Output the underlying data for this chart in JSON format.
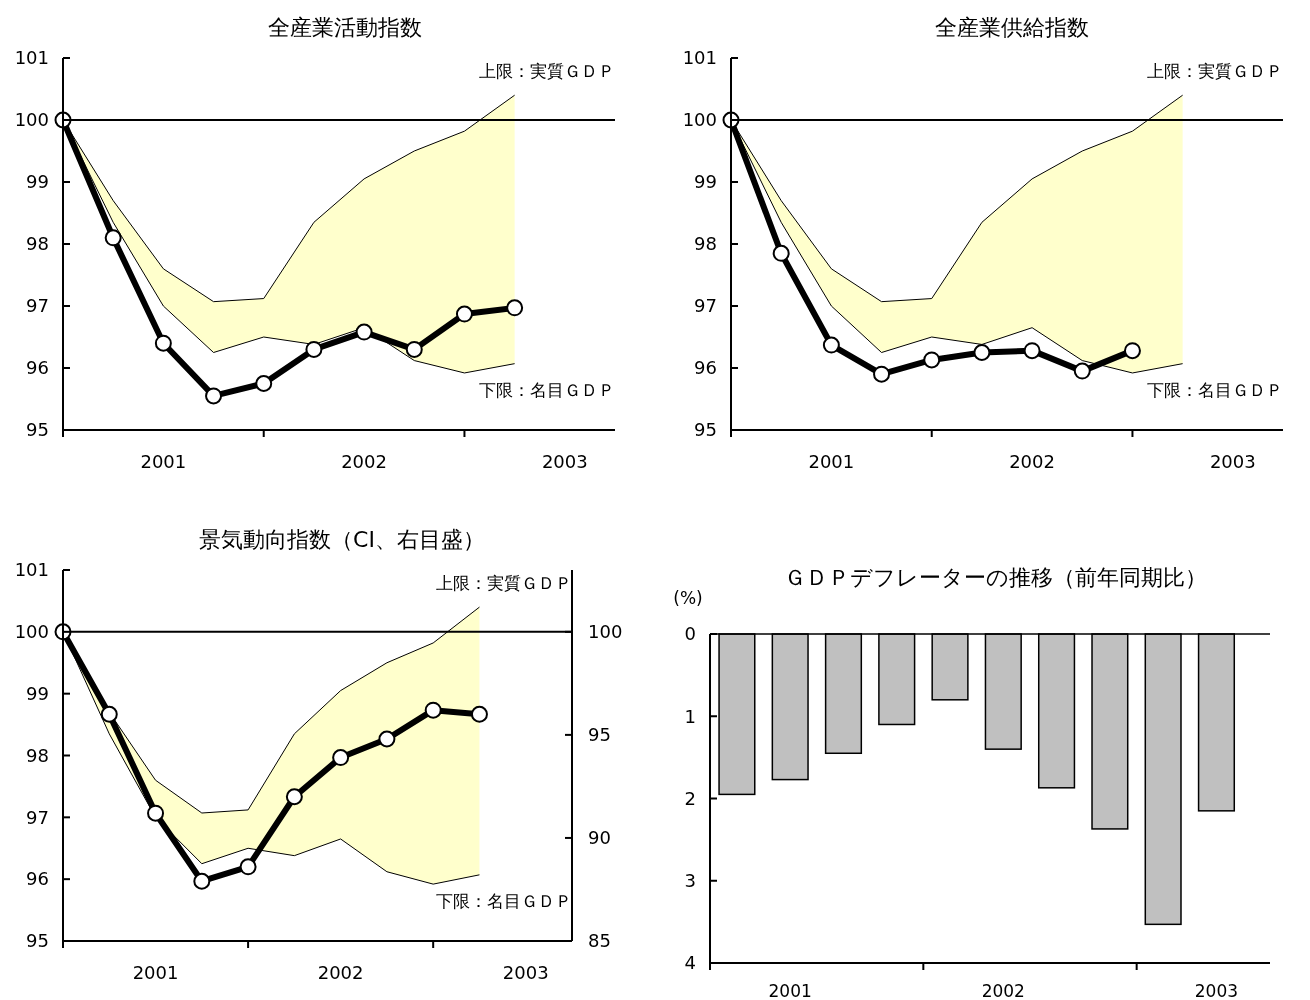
{
  "chart_data": [
    {
      "type": "line",
      "title": "全産業活動指数",
      "categories": [
        null,
        null,
        "2001",
        null,
        null,
        null,
        "2002",
        null,
        null,
        null,
        "2003"
      ],
      "ylim": [
        95,
        101
      ],
      "yticks": [
        95,
        96,
        97,
        98,
        99,
        100,
        101
      ],
      "ref_lines": [
        {
          "axis": "y",
          "value": 100
        }
      ],
      "annotations": [
        "上限：実質ＧＤＰ",
        "下限：名目ＧＤＰ"
      ],
      "series": [
        {
          "type": "area",
          "color": "#ffffcc",
          "values": [
            100,
            98.7,
            97.6,
            97.07,
            97.12,
            98.35,
            99.05,
            99.5,
            99.82,
            100.4,
            null
          ]
        },
        {
          "type": "line",
          "color": "#000000",
          "marker": "none",
          "values": [
            100,
            98.35,
            97.0,
            96.25,
            96.5,
            96.38,
            96.65,
            96.12,
            95.92,
            96.07,
            null
          ]
        },
        {
          "type": "line",
          "color": "#000000",
          "marker": "circle",
          "values": [
            100,
            98.1,
            96.4,
            95.55,
            95.75,
            96.3,
            96.58,
            96.3,
            96.87,
            96.97,
            null
          ]
        }
      ]
    },
    {
      "type": "line",
      "title": "全産業供給指数",
      "categories": [
        null,
        null,
        "2001",
        null,
        null,
        null,
        "2002",
        null,
        null,
        null,
        "2003"
      ],
      "ylim": [
        95,
        101
      ],
      "yticks": [
        95,
        96,
        97,
        98,
        99,
        100,
        101
      ],
      "ref_lines": [
        {
          "axis": "y",
          "value": 100
        }
      ],
      "annotations": [
        "上限：実質ＧＤＰ",
        "下限：名目ＧＤＰ"
      ],
      "series": [
        {
          "type": "area",
          "color": "#ffffcc",
          "values": [
            100,
            98.7,
            97.6,
            97.07,
            97.12,
            98.35,
            99.05,
            99.5,
            99.82,
            100.4,
            null
          ]
        },
        {
          "type": "line",
          "color": "#000000",
          "marker": "none",
          "values": [
            100,
            98.35,
            97.0,
            96.25,
            96.5,
            96.38,
            96.65,
            96.12,
            95.92,
            96.07,
            null
          ]
        },
        {
          "type": "line",
          "color": "#000000",
          "marker": "circle",
          "values": [
            100,
            97.85,
            96.37,
            95.9,
            96.13,
            96.25,
            96.28,
            95.95,
            96.28,
            null,
            null
          ]
        }
      ]
    },
    {
      "type": "line",
      "title": "景気動向指数（CI、右目盛）",
      "categories": [
        null,
        null,
        "2001",
        null,
        null,
        null,
        "2002",
        null,
        null,
        null,
        "2003"
      ],
      "ylim": [
        95,
        101
      ],
      "yticks": [
        95,
        96,
        97,
        98,
        99,
        100,
        101
      ],
      "y2lim": [
        85,
        103
      ],
      "y2ticks": [
        85,
        90,
        95,
        100
      ],
      "ref_lines": [
        {
          "axis": "y",
          "value": 100
        }
      ],
      "annotations": [
        "上限：実質ＧＤＰ",
        "下限：名目ＧＤＰ"
      ],
      "series": [
        {
          "type": "area",
          "color": "#ffffcc",
          "values": [
            100,
            98.7,
            97.6,
            97.07,
            97.12,
            98.35,
            99.05,
            99.5,
            99.82,
            100.4,
            null
          ]
        },
        {
          "type": "line",
          "color": "#000000",
          "marker": "none",
          "values": [
            100,
            98.35,
            97.0,
            96.25,
            96.5,
            96.38,
            96.65,
            96.12,
            95.92,
            96.07,
            null
          ]
        },
        {
          "type": "line",
          "color": "#000000",
          "marker": "circle",
          "axis": "y2",
          "values": [
            100,
            96.0,
            91.2,
            87.9,
            88.6,
            92.0,
            93.9,
            94.8,
            96.2,
            96.0,
            null
          ]
        }
      ]
    },
    {
      "type": "bar",
      "title": "ＧＤＰデフレーターの推移（前年同期比）",
      "ylabel": "(%)",
      "categories": [
        null,
        "2001",
        null,
        null,
        null,
        "2002",
        null,
        null,
        null,
        "2003"
      ],
      "ylim": [
        4,
        0
      ],
      "yticks": [
        0,
        1,
        2,
        3,
        4
      ],
      "color": "#c0c0c0",
      "values": [
        1.95,
        1.77,
        1.45,
        1.1,
        0.8,
        1.4,
        1.87,
        2.37,
        3.53,
        2.15
      ]
    }
  ]
}
